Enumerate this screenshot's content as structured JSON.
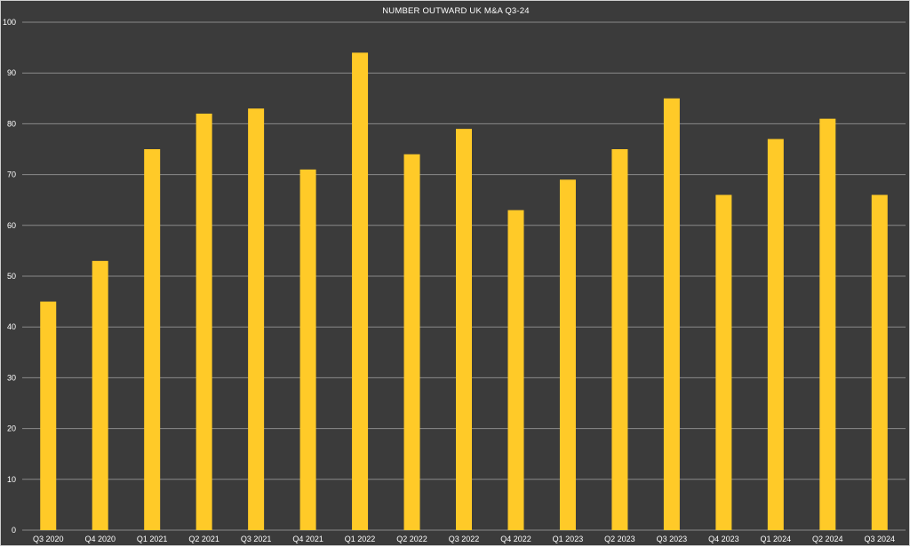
{
  "chart_data": {
    "type": "bar",
    "title": "NUMBER OUTWARD UK M&A Q3-24",
    "xlabel": "",
    "ylabel": "",
    "categories": [
      "Q3 2020",
      "Q4 2020",
      "Q1 2021",
      "Q2 2021",
      "Q3 2021",
      "Q4 2021",
      "Q1 2022",
      "Q2 2022",
      "Q3 2022",
      "Q4 2022",
      "Q1 2023",
      "Q2 2023",
      "Q3 2023",
      "Q4 2023",
      "Q1 2024",
      "Q2 2024",
      "Q3 2024"
    ],
    "values": [
      45,
      53,
      75,
      82,
      83,
      71,
      94,
      74,
      79,
      63,
      69,
      75,
      85,
      66,
      77,
      81,
      66
    ],
    "ylim": [
      0,
      100
    ],
    "yticks": [
      0,
      10,
      20,
      30,
      40,
      50,
      60,
      70,
      80,
      90,
      100
    ],
    "grid": true,
    "legend": "none",
    "colors": {
      "background": "#3b3b3b",
      "bar": "#ffca28",
      "grid": "#8a8a8a",
      "text": "#ffffff"
    }
  }
}
